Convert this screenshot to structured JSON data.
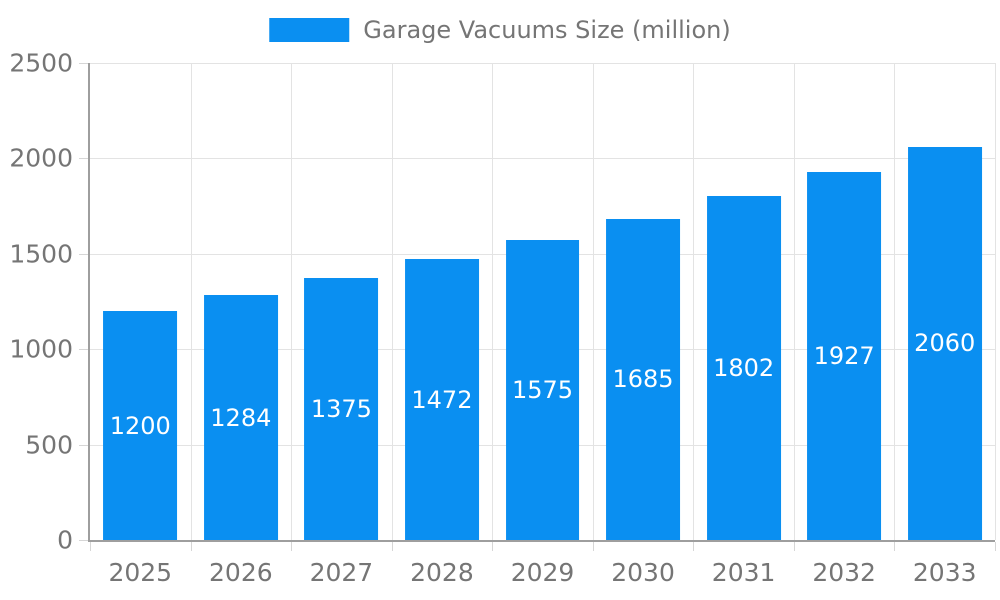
{
  "chart_data": {
    "type": "bar",
    "title": "Garage Vacuums Size (million)",
    "legend": "Garage Vacuums Size (million)",
    "legend_position": "top-center",
    "categories": [
      "2025",
      "2026",
      "2027",
      "2028",
      "2029",
      "2030",
      "2031",
      "2032",
      "2033"
    ],
    "values": [
      1200,
      1284,
      1375,
      1472,
      1575,
      1685,
      1802,
      1927,
      2060
    ],
    "xlabel": "",
    "ylabel": "",
    "ylim": [
      0,
      2500
    ],
    "yticks": [
      0,
      500,
      1000,
      1500,
      2000,
      2500
    ],
    "grid": true,
    "value_labels": "inside-center",
    "colors": {
      "bar": "#0a8ff1",
      "grid_line": "#e3e3e3",
      "tick_line": "#d6d6d6",
      "axis_line": "#9e9e9e",
      "tick_text": "#757575",
      "legend_text": "#757575",
      "value_text": "#ffffff",
      "background": "#ffffff"
    }
  }
}
